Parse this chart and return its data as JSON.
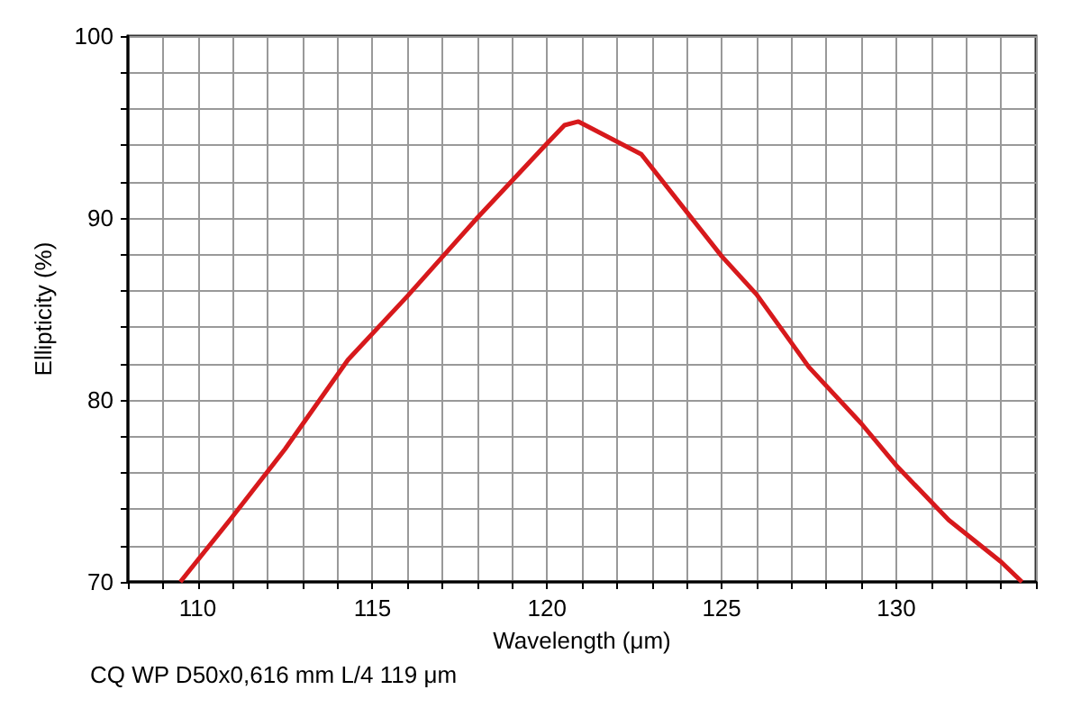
{
  "chart_data": {
    "type": "line",
    "xlabel": "Wavelength (μm)",
    "ylabel": "Ellipticity (%)",
    "annotations": [
      "CQ WP D50x0,616 mm L/4 119 μm"
    ],
    "xlim": [
      108,
      134
    ],
    "xticks": [
      {
        "value": 108,
        "label": null
      },
      {
        "value": 109,
        "label": null
      },
      110,
      {
        "value": 111,
        "label": null
      },
      {
        "value": 112,
        "label": null
      },
      {
        "value": 113,
        "label": null
      },
      {
        "value": 114,
        "label": null
      },
      115,
      {
        "value": 116,
        "label": null
      },
      {
        "value": 117,
        "label": null
      },
      {
        "value": 118,
        "label": null
      },
      {
        "value": 119,
        "label": null
      },
      120,
      {
        "value": 121,
        "label": null
      },
      {
        "value": 122,
        "label": null
      },
      {
        "value": 123,
        "label": null
      },
      {
        "value": 124,
        "label": null
      },
      125,
      {
        "value": 126,
        "label": null
      },
      {
        "value": 127,
        "label": null
      },
      {
        "value": 128,
        "label": null
      },
      {
        "value": 129,
        "label": null
      },
      130,
      {
        "value": 131,
        "label": null
      },
      {
        "value": 132,
        "label": null
      },
      {
        "value": 133,
        "label": null
      },
      {
        "value": 134,
        "label": null
      }
    ],
    "ylim": [
      70,
      100
    ],
    "yticks": [
      70,
      {
        "value": 72,
        "label": null
      },
      {
        "value": 74,
        "label": null
      },
      {
        "value": 76,
        "label": null
      },
      {
        "value": 78,
        "label": null
      },
      80,
      {
        "value": 82,
        "label": null
      },
      {
        "value": 84,
        "label": null
      },
      {
        "value": 86,
        "label": null
      },
      {
        "value": 88,
        "label": null
      },
      90,
      {
        "value": 92,
        "label": null
      },
      {
        "value": 94,
        "label": null
      },
      {
        "value": 96,
        "label": null
      },
      {
        "value": 98,
        "label": null
      },
      100
    ],
    "grid": true,
    "marker": "none",
    "line_style": "solid",
    "x": [
      109.5,
      111,
      112.5,
      114.3,
      116,
      118,
      120,
      120.5,
      120.9,
      122.7,
      125,
      126,
      127.5,
      129,
      130,
      131.5,
      133,
      133.6
    ],
    "series": [
      {
        "color": "#d7191c",
        "values": [
          70,
          73.6,
          77.3,
          82.2,
          85.7,
          90,
          94.1,
          95.1,
          95.3,
          93.5,
          87.9,
          85.8,
          81.8,
          78.7,
          76.4,
          73.4,
          71.1,
          70
        ]
      }
    ]
  }
}
